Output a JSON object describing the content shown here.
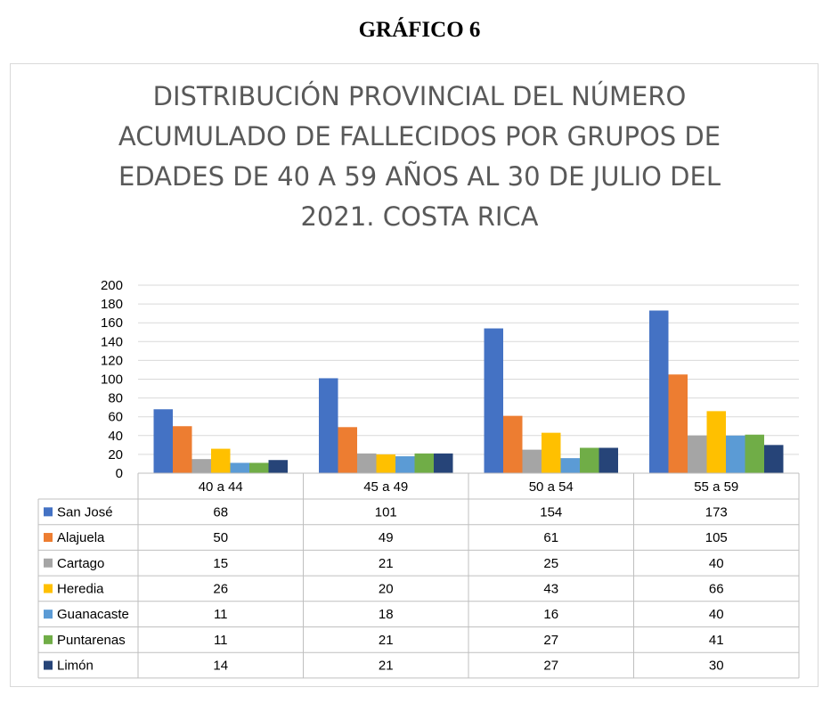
{
  "page": {
    "heading": "GRÁFICO 6"
  },
  "chart_data": {
    "type": "bar",
    "title": "DISTRIBUCIÓN PROVINCIAL DEL NÚMERO ACUMULADO DE FALLECIDOS POR GRUPOS DE EDADES DE 40 A 59 AÑOS AL 30 DE JULIO DEL 2021. COSTA RICA",
    "title_lines": [
      "DISTRIBUCIÓN PROVINCIAL DEL NÚMERO",
      "ACUMULADO DE FALLECIDOS POR GRUPOS DE",
      "EDADES DE 40 A 59 AÑOS AL 30 DE JULIO DEL",
      "2021. COSTA RICA"
    ],
    "categories": [
      "40 a 44",
      "45 a 49",
      "50 a 54",
      "55 a 59"
    ],
    "ylim": [
      0,
      200
    ],
    "yticks": [
      0,
      20,
      40,
      60,
      80,
      100,
      120,
      140,
      160,
      180,
      200
    ],
    "grid": true,
    "legend": "data-table",
    "series": [
      {
        "name": "San José",
        "color": "#4472c4",
        "values": [
          68,
          101,
          154,
          173
        ]
      },
      {
        "name": "Alajuela",
        "color": "#ed7d31",
        "values": [
          50,
          49,
          61,
          105
        ]
      },
      {
        "name": "Cartago",
        "color": "#a5a5a5",
        "values": [
          15,
          21,
          25,
          40
        ]
      },
      {
        "name": "Heredia",
        "color": "#ffc000",
        "values": [
          26,
          20,
          43,
          66
        ]
      },
      {
        "name": "Guanacaste",
        "color": "#5b9bd5",
        "values": [
          11,
          18,
          16,
          40
        ]
      },
      {
        "name": "Puntarenas",
        "color": "#70ad47",
        "values": [
          11,
          21,
          27,
          41
        ]
      },
      {
        "name": "Limón",
        "color": "#264478",
        "values": [
          14,
          21,
          27,
          30
        ]
      }
    ]
  }
}
